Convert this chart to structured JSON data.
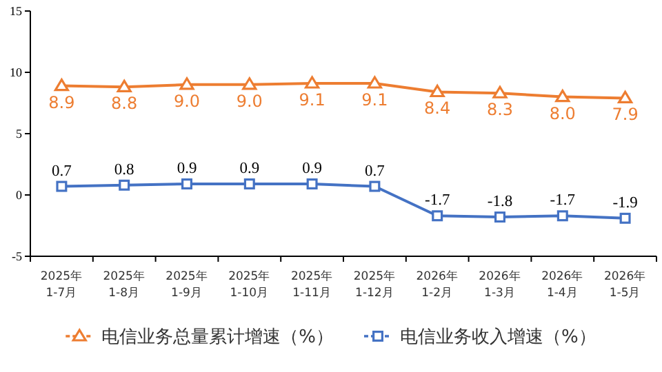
{
  "chart_data": {
    "type": "line",
    "categories": [
      "2025年\n1-7月",
      "2025年\n1-8月",
      "2025年\n1-9月",
      "2025年\n1-10月",
      "2025年\n1-11月",
      "2025年\n1-12月",
      "2026年\n1-2月",
      "2026年\n1-3月",
      "2026年\n1-4月",
      "2026年\n1-5月"
    ],
    "series": [
      {
        "name": "电信业务总量累计增速（%）",
        "color": "#ed7d31",
        "marker": "triangle",
        "values": [
          8.9,
          8.8,
          9.0,
          9.0,
          9.1,
          9.1,
          8.4,
          8.3,
          8.0,
          7.9
        ],
        "value_labels": [
          "8.9",
          "8.8",
          "9.0",
          "9.0",
          "9.1",
          "9.1",
          "8.4",
          "8.3",
          "8.0",
          "7.9"
        ]
      },
      {
        "name": "电信业务收入增速（%）",
        "color": "#4472c4",
        "marker": "square",
        "values": [
          0.7,
          0.8,
          0.9,
          0.9,
          0.9,
          0.7,
          -1.7,
          -1.8,
          -1.7,
          -1.9
        ],
        "value_labels": [
          "0.7",
          "0.8",
          "0.9",
          "0.9",
          "0.9",
          "0.7",
          "-1.7",
          "-1.8",
          "-1.7",
          "-1.9"
        ]
      }
    ],
    "ylim": [
      -5,
      15
    ],
    "yticks": [
      -5,
      0,
      5,
      10,
      15
    ],
    "legend": "bottom"
  }
}
